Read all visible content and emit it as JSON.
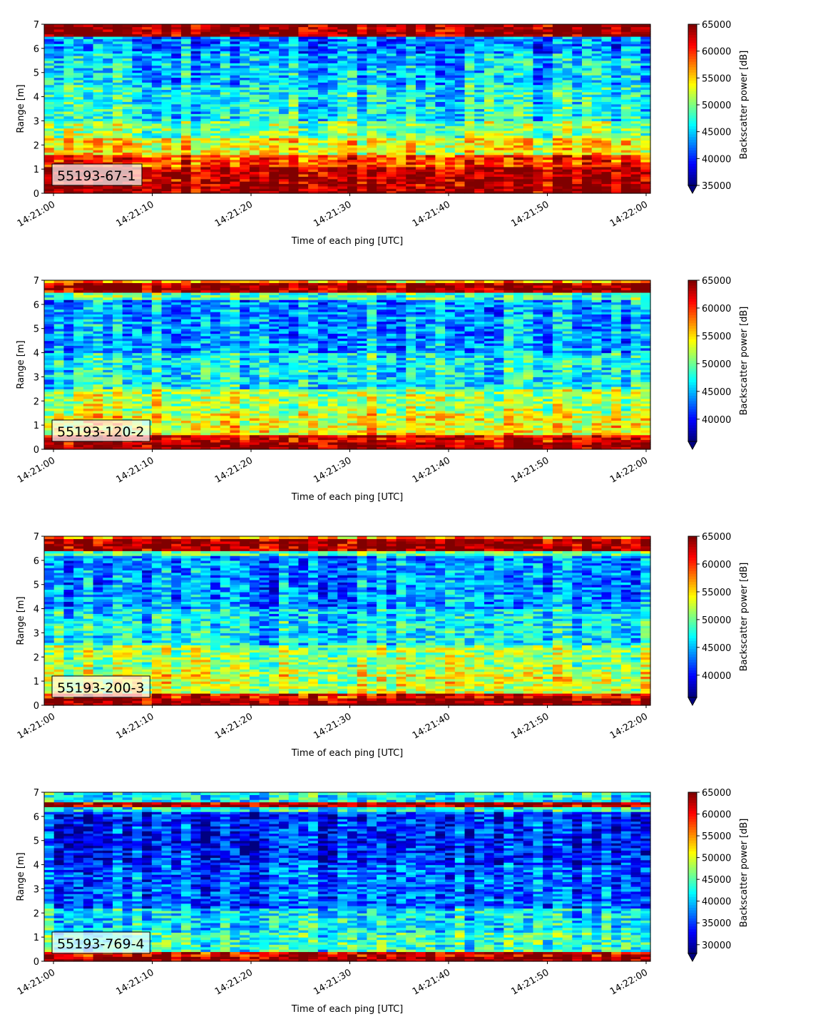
{
  "chart_data": [
    {
      "type": "heatmap",
      "label": "55193-67-1",
      "xlabel": "Time of each ping [UTC]",
      "ylabel": "Range [m]",
      "ylim": [
        0,
        7
      ],
      "yticks": [
        "0",
        "1",
        "2",
        "3",
        "4",
        "5",
        "6",
        "7"
      ],
      "xticks": [
        "14:21:00",
        "14:21:10",
        "14:21:20",
        "14:21:30",
        "14:21:40",
        "14:21:50",
        "14:22:00"
      ],
      "colorbar": {
        "label": "Backscatter power [dB]",
        "range": [
          35000,
          65000
        ],
        "ticks": [
          "65000",
          "60000",
          "55000",
          "50000",
          "45000",
          "40000",
          "35000"
        ],
        "extend": "min",
        "colormap": "jet"
      },
      "bands": [
        {
          "from": 0.0,
          "to": 0.3,
          "level": 0.98
        },
        {
          "from": 0.3,
          "to": 1.1,
          "level": 0.95
        },
        {
          "from": 1.1,
          "to": 1.6,
          "level": 0.82
        },
        {
          "from": 1.6,
          "to": 2.3,
          "level": 0.62
        },
        {
          "from": 2.3,
          "to": 3.0,
          "level": 0.5
        },
        {
          "from": 3.0,
          "to": 4.5,
          "level": 0.38
        },
        {
          "from": 4.5,
          "to": 5.8,
          "level": 0.32
        },
        {
          "from": 5.8,
          "to": 6.5,
          "level": 0.25
        },
        {
          "from": 6.5,
          "to": 7.0,
          "level": 0.98
        }
      ]
    },
    {
      "type": "heatmap",
      "label": "55193-120-2",
      "xlabel": "Time of each ping [UTC]",
      "ylabel": "Range [m]",
      "ylim": [
        0,
        7
      ],
      "yticks": [
        "0",
        "1",
        "2",
        "3",
        "4",
        "5",
        "6",
        "7"
      ],
      "xticks": [
        "14:21:00",
        "14:21:10",
        "14:21:20",
        "14:21:30",
        "14:21:40",
        "14:21:50",
        "14:22:00"
      ],
      "colorbar": {
        "label": "Backscatter power [dB]",
        "range": [
          36000,
          65000
        ],
        "ticks": [
          "65000",
          "60000",
          "55000",
          "50000",
          "45000",
          "40000"
        ],
        "extend": "min",
        "colormap": "jet"
      },
      "bands": [
        {
          "from": 0.0,
          "to": 0.3,
          "level": 0.98
        },
        {
          "from": 0.3,
          "to": 0.6,
          "level": 0.92
        },
        {
          "from": 0.6,
          "to": 1.5,
          "level": 0.62
        },
        {
          "from": 1.5,
          "to": 2.5,
          "level": 0.55
        },
        {
          "from": 2.5,
          "to": 4.0,
          "level": 0.38
        },
        {
          "from": 4.0,
          "to": 6.2,
          "level": 0.28
        },
        {
          "from": 6.2,
          "to": 6.5,
          "level": 0.45
        },
        {
          "from": 6.5,
          "to": 6.9,
          "level": 0.97
        },
        {
          "from": 6.9,
          "to": 7.0,
          "level": 0.7
        }
      ]
    },
    {
      "type": "heatmap",
      "label": "55193-200-3",
      "xlabel": "Time of each ping [UTC]",
      "ylabel": "Range [m]",
      "ylim": [
        0,
        7
      ],
      "yticks": [
        "0",
        "1",
        "2",
        "3",
        "4",
        "5",
        "6",
        "7"
      ],
      "xticks": [
        "14:21:00",
        "14:21:10",
        "14:21:20",
        "14:21:30",
        "14:21:40",
        "14:21:50",
        "14:22:00"
      ],
      "colorbar": {
        "label": "Backscatter power [dB]",
        "range": [
          36000,
          65000
        ],
        "ticks": [
          "65000",
          "60000",
          "55000",
          "50000",
          "45000",
          "40000"
        ],
        "extend": "min",
        "colormap": "jet"
      },
      "bands": [
        {
          "from": 0.0,
          "to": 0.3,
          "level": 0.98
        },
        {
          "from": 0.3,
          "to": 0.5,
          "level": 0.88
        },
        {
          "from": 0.5,
          "to": 1.5,
          "level": 0.58
        },
        {
          "from": 1.5,
          "to": 2.5,
          "level": 0.52
        },
        {
          "from": 2.5,
          "to": 4.0,
          "level": 0.36
        },
        {
          "from": 4.0,
          "to": 6.2,
          "level": 0.26
        },
        {
          "from": 6.2,
          "to": 6.4,
          "level": 0.45
        },
        {
          "from": 6.4,
          "to": 6.9,
          "level": 0.97
        },
        {
          "from": 6.9,
          "to": 7.0,
          "level": 0.72
        }
      ]
    },
    {
      "type": "heatmap",
      "label": "55193-769-4",
      "xlabel": "Time of each ping [UTC]",
      "ylabel": "Range [m]",
      "ylim": [
        0,
        7
      ],
      "yticks": [
        "0",
        "1",
        "2",
        "3",
        "4",
        "5",
        "6",
        "7"
      ],
      "xticks": [
        "14:21:00",
        "14:21:10",
        "14:21:20",
        "14:21:30",
        "14:21:40",
        "14:21:50",
        "14:22:00"
      ],
      "colorbar": {
        "label": "Backscatter power [dB]",
        "range": [
          28000,
          65000
        ],
        "ticks": [
          "65000",
          "60000",
          "55000",
          "50000",
          "45000",
          "40000",
          "35000",
          "30000"
        ],
        "extend": "min",
        "colormap": "jet"
      },
      "bands": [
        {
          "from": 0.0,
          "to": 0.2,
          "level": 0.98
        },
        {
          "from": 0.2,
          "to": 0.4,
          "level": 0.9
        },
        {
          "from": 0.4,
          "to": 1.2,
          "level": 0.42
        },
        {
          "from": 1.2,
          "to": 2.2,
          "level": 0.36
        },
        {
          "from": 2.2,
          "to": 4.0,
          "level": 0.22
        },
        {
          "from": 4.0,
          "to": 6.2,
          "level": 0.16
        },
        {
          "from": 6.2,
          "to": 6.4,
          "level": 0.4
        },
        {
          "from": 6.4,
          "to": 6.6,
          "level": 0.96
        },
        {
          "from": 6.6,
          "to": 7.0,
          "level": 0.38
        }
      ]
    }
  ]
}
